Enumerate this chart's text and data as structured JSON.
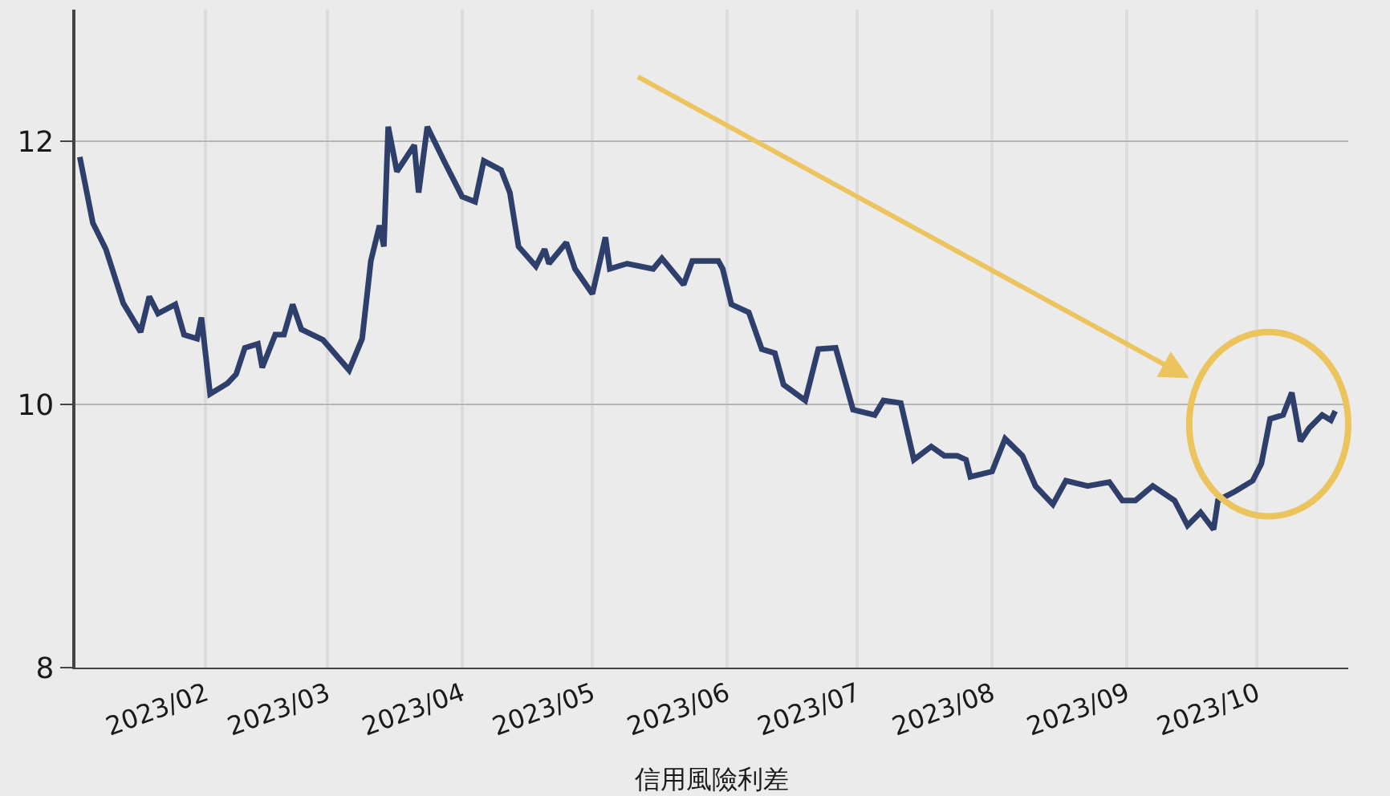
{
  "chart_data": {
    "type": "line",
    "xlabel": "信用風險利差",
    "x": [
      "2023-01-03",
      "2023-01-06",
      "2023-01-09",
      "2023-01-13",
      "2023-01-17",
      "2023-01-19",
      "2023-01-21",
      "2023-01-25",
      "2023-01-27",
      "2023-01-30",
      "2023-01-31",
      "2023-02-02",
      "2023-02-06",
      "2023-02-08",
      "2023-02-10",
      "2023-02-13",
      "2023-02-14",
      "2023-02-17",
      "2023-02-19",
      "2023-02-21",
      "2023-02-23",
      "2023-02-28",
      "2023-03-06",
      "2023-03-09",
      "2023-03-11",
      "2023-03-13",
      "2023-03-14",
      "2023-03-15",
      "2023-03-17",
      "2023-03-21",
      "2023-03-22",
      "2023-03-24",
      "2023-03-28",
      "2023-04-01",
      "2023-04-04",
      "2023-04-06",
      "2023-04-10",
      "2023-04-12",
      "2023-04-14",
      "2023-04-18",
      "2023-04-20",
      "2023-04-21",
      "2023-04-25",
      "2023-04-27",
      "2023-05-01",
      "2023-05-04",
      "2023-05-05",
      "2023-05-09",
      "2023-05-15",
      "2023-05-17",
      "2023-05-22",
      "2023-05-24",
      "2023-05-30",
      "2023-05-31",
      "2023-06-02",
      "2023-06-06",
      "2023-06-09",
      "2023-06-12",
      "2023-06-14",
      "2023-06-19",
      "2023-06-22",
      "2023-06-26",
      "2023-06-30",
      "2023-07-05",
      "2023-07-07",
      "2023-07-11",
      "2023-07-14",
      "2023-07-18",
      "2023-07-21",
      "2023-07-24",
      "2023-07-26",
      "2023-07-27",
      "2023-08-01",
      "2023-08-04",
      "2023-08-08",
      "2023-08-11",
      "2023-08-15",
      "2023-08-18",
      "2023-08-23",
      "2023-08-28",
      "2023-08-31",
      "2023-09-03",
      "2023-09-07",
      "2023-09-12",
      "2023-09-15",
      "2023-09-18",
      "2023-09-21",
      "2023-09-22",
      "2023-09-26",
      "2023-09-30",
      "2023-10-02",
      "2023-10-04",
      "2023-10-07",
      "2023-10-09",
      "2023-10-11",
      "2023-10-13",
      "2023-10-16",
      "2023-10-18",
      "2023-10-19"
    ],
    "series": [
      {
        "color": "#2e3f6b",
        "values": [
          11.88,
          11.38,
          11.18,
          10.77,
          10.55,
          10.82,
          10.69,
          10.76,
          10.53,
          10.5,
          10.66,
          10.08,
          10.16,
          10.23,
          10.43,
          10.46,
          10.28,
          10.53,
          10.53,
          10.76,
          10.57,
          10.49,
          10.26,
          10.5,
          11.09,
          11.36,
          11.2,
          12.11,
          11.77,
          11.97,
          11.61,
          12.11,
          11.84,
          11.58,
          11.54,
          11.85,
          11.78,
          11.61,
          11.2,
          11.05,
          11.18,
          11.07,
          11.23,
          11.03,
          10.84,
          11.27,
          11.03,
          11.07,
          11.03,
          11.11,
          10.91,
          11.09,
          11.09,
          11.03,
          10.76,
          10.7,
          10.42,
          10.39,
          10.15,
          10.03,
          10.42,
          10.43,
          9.96,
          9.92,
          10.03,
          10.01,
          9.58,
          9.68,
          9.61,
          9.61,
          9.58,
          9.45,
          9.49,
          9.74,
          9.61,
          9.38,
          9.24,
          9.42,
          9.38,
          9.41,
          9.27,
          9.27,
          9.38,
          9.27,
          9.08,
          9.18,
          9.05,
          9.27,
          9.34,
          9.42,
          9.55,
          9.89,
          9.92,
          10.09,
          9.72,
          9.82,
          9.92,
          9.88,
          9.95
        ]
      }
    ],
    "xlim": [
      "2023-01-02",
      "2023-10-22"
    ],
    "xticks": [
      {
        "value": "2023-02-01",
        "label": "2023/02"
      },
      {
        "value": "2023-03-01",
        "label": "2023/03"
      },
      {
        "value": "2023-04-01",
        "label": "2023/04"
      },
      {
        "value": "2023-05-01",
        "label": "2023/05"
      },
      {
        "value": "2023-06-01",
        "label": "2023/06"
      },
      {
        "value": "2023-07-01",
        "label": "2023/07"
      },
      {
        "value": "2023-08-01",
        "label": "2023/08"
      },
      {
        "value": "2023-09-01",
        "label": "2023/09"
      },
      {
        "value": "2023-10-01",
        "label": "2023/10"
      }
    ],
    "ylim": [
      8,
      13
    ],
    "yticks": [
      8,
      10,
      12
    ],
    "grid": true,
    "marker": "none",
    "line_style": "solid"
  }
}
